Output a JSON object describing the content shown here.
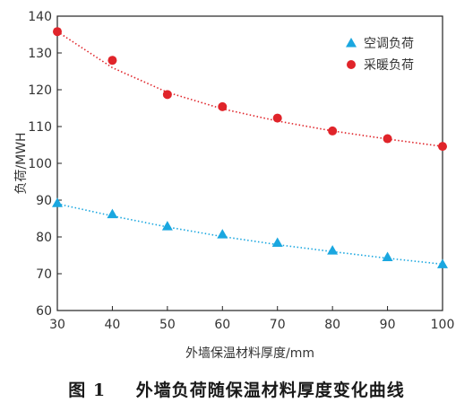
{
  "chart_data": {
    "type": "line",
    "xlabel": "外墙保温材料厚度/mm",
    "ylabel": "负荷/MWH",
    "xlim": [
      30,
      100
    ],
    "ylim": [
      60,
      140
    ],
    "x_ticks": [
      30,
      40,
      50,
      60,
      70,
      80,
      90,
      100
    ],
    "y_ticks": [
      60,
      70,
      80,
      90,
      100,
      110,
      120,
      130,
      140
    ],
    "x": [
      30,
      40,
      50,
      60,
      70,
      80,
      90,
      100
    ],
    "series": [
      {
        "name": "空调负荷",
        "marker": "triangle",
        "color": "#1aa7e0",
        "values": [
          89.2,
          86.2,
          82.9,
          80.7,
          78.4,
          76.3,
          74.5,
          72.6
        ],
        "fit": [
          89.0,
          85.7,
          82.7,
          80.1,
          77.9,
          76.0,
          74.2,
          72.6
        ]
      },
      {
        "name": "采暖负荷",
        "marker": "circle",
        "color": "#e0242a",
        "values": [
          135.8,
          128.0,
          118.7,
          115.4,
          112.3,
          108.8,
          106.7,
          104.6
        ],
        "fit": [
          135.8,
          126.0,
          119.3,
          114.8,
          111.5,
          108.8,
          106.6,
          104.6
        ]
      }
    ],
    "legend_position": "top-right",
    "grid": false
  },
  "caption": {
    "number": "图 1",
    "title": "外墙负荷随保温材料厚度变化曲线"
  }
}
